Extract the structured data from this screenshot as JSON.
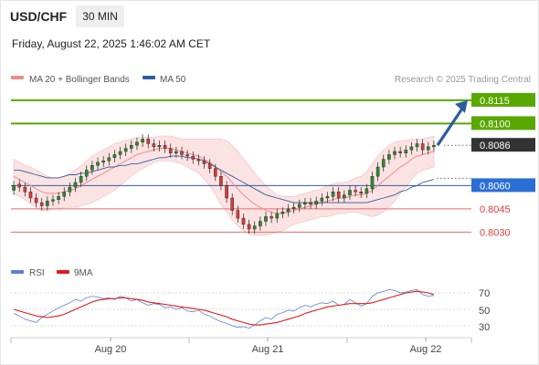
{
  "header": {
    "symbol": "USD/CHF",
    "timeframe": "30 MIN",
    "datetime": "Friday, August 22, 2025 1:46:02 AM CET"
  },
  "legend": {
    "bollinger": {
      "label": "MA 20 + Bollinger Bands",
      "color": "#f28b8b"
    },
    "ma50": {
      "label": "MA 50",
      "color": "#2e5d9f"
    },
    "copyright": "Research © 2025 Trading Central"
  },
  "rsi_legend": {
    "rsi": {
      "label": "RSI",
      "color": "#5b7fd6"
    },
    "ma9": {
      "label": "9MA",
      "color": "#e31b1b"
    }
  },
  "colors": {
    "bull": "#2c8a2c",
    "bear": "#d73a3a",
    "green_level": "#58a800",
    "red_level": "#e66a6a",
    "current": "#333333",
    "blue_level": "#2e5d9f",
    "arrow": "#2e5d9f"
  },
  "chart_data": {
    "type": "candlestick",
    "price_axis": {
      "min": 0.8022,
      "max": 0.8122
    },
    "levels": [
      {
        "value": 0.8115,
        "label": "0.8115",
        "kind": "resistance"
      },
      {
        "value": 0.81,
        "label": "0.8100",
        "kind": "resistance"
      },
      {
        "value": 0.8086,
        "label": "0.8086",
        "kind": "current"
      },
      {
        "value": 0.806,
        "label": "0.8060",
        "kind": "pivot"
      },
      {
        "value": 0.8045,
        "label": "0.8045",
        "kind": "support"
      },
      {
        "value": 0.803,
        "label": "0.8030",
        "kind": "support"
      }
    ],
    "x_labels": [
      "Aug 20",
      "Aug 21",
      "Aug 22"
    ],
    "closes": [
      0.806,
      0.8059,
      0.8056,
      0.8052,
      0.8049,
      0.8047,
      0.805,
      0.8051,
      0.8053,
      0.8056,
      0.8059,
      0.8062,
      0.8066,
      0.807,
      0.8073,
      0.8075,
      0.8076,
      0.8078,
      0.808,
      0.8082,
      0.8084,
      0.8086,
      0.8088,
      0.809,
      0.8087,
      0.8085,
      0.8086,
      0.8084,
      0.8081,
      0.8082,
      0.808,
      0.8079,
      0.8077,
      0.8076,
      0.8074,
      0.8071,
      0.8066,
      0.806,
      0.8052,
      0.8044,
      0.8039,
      0.8035,
      0.8032,
      0.8034,
      0.8037,
      0.804,
      0.8039,
      0.8042,
      0.8043,
      0.8045,
      0.8046,
      0.8048,
      0.8049,
      0.8048,
      0.805,
      0.8052,
      0.8053,
      0.8056,
      0.8052,
      0.8054,
      0.8057,
      0.8056,
      0.8055,
      0.8058,
      0.8066,
      0.8072,
      0.8077,
      0.808,
      0.8082,
      0.8081,
      0.8083,
      0.8085,
      0.8087,
      0.8083,
      0.8085,
      0.8086
    ],
    "opens": [
      0.8057,
      0.8061,
      0.8059,
      0.8056,
      0.8052,
      0.8049,
      0.8047,
      0.805,
      0.8051,
      0.8053,
      0.8056,
      0.8059,
      0.8062,
      0.8066,
      0.807,
      0.8073,
      0.8075,
      0.8076,
      0.8078,
      0.808,
      0.8082,
      0.8084,
      0.8086,
      0.8088,
      0.809,
      0.8087,
      0.8085,
      0.8086,
      0.8084,
      0.8081,
      0.8082,
      0.808,
      0.8079,
      0.8077,
      0.8076,
      0.8074,
      0.8071,
      0.8066,
      0.806,
      0.8052,
      0.8044,
      0.8039,
      0.8035,
      0.8032,
      0.8034,
      0.8037,
      0.804,
      0.8039,
      0.8042,
      0.8043,
      0.8045,
      0.8046,
      0.8048,
      0.8049,
      0.8048,
      0.805,
      0.8052,
      0.8053,
      0.8056,
      0.8052,
      0.8054,
      0.8057,
      0.8056,
      0.8055,
      0.8058,
      0.8066,
      0.8072,
      0.8077,
      0.808,
      0.8082,
      0.8081,
      0.8083,
      0.8085,
      0.8087,
      0.8083,
      0.8085
    ],
    "ma20": [
      0.8066,
      0.8064,
      0.8062,
      0.806,
      0.8058,
      0.8056,
      0.8055,
      0.8055,
      0.8055,
      0.8056,
      0.8057,
      0.8058,
      0.806,
      0.8062,
      0.8064,
      0.8066,
      0.8068,
      0.807,
      0.8072,
      0.8074,
      0.8076,
      0.8078,
      0.808,
      0.8081,
      0.8082,
      0.8083,
      0.8084,
      0.8084,
      0.8084,
      0.8083,
      0.8082,
      0.8081,
      0.808,
      0.8079,
      0.8077,
      0.8075,
      0.8072,
      0.8069,
      0.8066,
      0.8062,
      0.8058,
      0.8054,
      0.8051,
      0.8048,
      0.8046,
      0.8044,
      0.8043,
      0.8042,
      0.8042,
      0.8043,
      0.8044,
      0.8045,
      0.8046,
      0.8047,
      0.8048,
      0.8049,
      0.805,
      0.8051,
      0.8052,
      0.8052,
      0.8053,
      0.8054,
      0.8054,
      0.8055,
      0.8057,
      0.806,
      0.8063,
      0.8066,
      0.8069,
      0.8072,
      0.8074,
      0.8077,
      0.8079,
      0.808,
      0.8081,
      0.8082
    ],
    "band_width": [
      0.0011,
      0.0011,
      0.0011,
      0.0012,
      0.0012,
      0.0012,
      0.0011,
      0.001,
      0.001,
      0.001,
      0.0011,
      0.0012,
      0.0013,
      0.0014,
      0.0015,
      0.0015,
      0.0015,
      0.0015,
      0.0015,
      0.0014,
      0.0013,
      0.0012,
      0.0011,
      0.001,
      0.0009,
      0.0008,
      0.0008,
      0.0008,
      0.0008,
      0.0008,
      0.0008,
      0.0009,
      0.001,
      0.0011,
      0.0013,
      0.0015,
      0.0018,
      0.0021,
      0.0023,
      0.0024,
      0.0024,
      0.0023,
      0.0022,
      0.002,
      0.0018,
      0.0016,
      0.0014,
      0.0012,
      0.0011,
      0.001,
      0.0009,
      0.0009,
      0.0009,
      0.0009,
      0.0009,
      0.0009,
      0.001,
      0.001,
      0.001,
      0.001,
      0.001,
      0.0011,
      0.0012,
      0.0014,
      0.0017,
      0.0019,
      0.002,
      0.002,
      0.0019,
      0.0017,
      0.0015,
      0.0013,
      0.0011,
      0.001,
      0.001,
      0.001
    ],
    "ma50": [
      0.807,
      0.807,
      0.8069,
      0.8068,
      0.8067,
      0.8066,
      0.8065,
      0.8065,
      0.8065,
      0.8066,
      0.8067,
      0.8067,
      0.8068,
      0.8068,
      0.8069,
      0.807,
      0.8071,
      0.8072,
      0.8072,
      0.8073,
      0.8073,
      0.8074,
      0.8074,
      0.8075,
      0.8076,
      0.8077,
      0.8078,
      0.8078,
      0.8079,
      0.8079,
      0.8079,
      0.8078,
      0.8078,
      0.8077,
      0.8076,
      0.8074,
      0.8072,
      0.807,
      0.8068,
      0.8066,
      0.8064,
      0.8062,
      0.806,
      0.8058,
      0.8056,
      0.8054,
      0.8053,
      0.8052,
      0.8051,
      0.805,
      0.8049,
      0.8049,
      0.8049,
      0.8049,
      0.8049,
      0.8049,
      0.8049,
      0.8049,
      0.8049,
      0.8049,
      0.8049,
      0.8049,
      0.8049,
      0.8049,
      0.805,
      0.8051,
      0.8052,
      0.8053,
      0.8054,
      0.8056,
      0.8057,
      0.8059,
      0.806,
      0.8062,
      0.8063,
      0.8064
    ],
    "rsi": {
      "min": 20,
      "max": 80,
      "ticks": [
        70,
        50,
        30
      ],
      "values": [
        45,
        42,
        38,
        36,
        34,
        40,
        44,
        48,
        52,
        55,
        58,
        62,
        60,
        64,
        66,
        65,
        63,
        64,
        62,
        66,
        64,
        60,
        62,
        58,
        55,
        57,
        56,
        52,
        53,
        50,
        52,
        48,
        47,
        49,
        44,
        42,
        38,
        35,
        33,
        30,
        28,
        29,
        27,
        31,
        36,
        40,
        38,
        44,
        46,
        49,
        48,
        52,
        55,
        53,
        56,
        58,
        57,
        60,
        55,
        56,
        62,
        58,
        54,
        57,
        66,
        70,
        72,
        74,
        73,
        70,
        71,
        73,
        74,
        68,
        66,
        67
      ],
      "ma9": [
        50,
        48,
        46,
        44,
        42,
        41,
        40,
        41,
        42,
        44,
        47,
        50,
        53,
        56,
        59,
        61,
        62,
        63,
        63,
        64,
        64,
        63,
        62,
        61,
        59,
        58,
        57,
        56,
        55,
        54,
        53,
        52,
        51,
        50,
        49,
        47,
        45,
        43,
        41,
        38,
        36,
        34,
        32,
        31,
        31,
        32,
        33,
        34,
        36,
        38,
        40,
        42,
        45,
        47,
        49,
        51,
        53,
        54,
        55,
        56,
        57,
        57,
        57,
        57,
        58,
        60,
        62,
        64,
        66,
        68,
        70,
        71,
        72,
        71,
        70,
        68
      ]
    }
  },
  "rsi_labels": {
    "t70": "70",
    "t50": "50",
    "t30": "30"
  }
}
